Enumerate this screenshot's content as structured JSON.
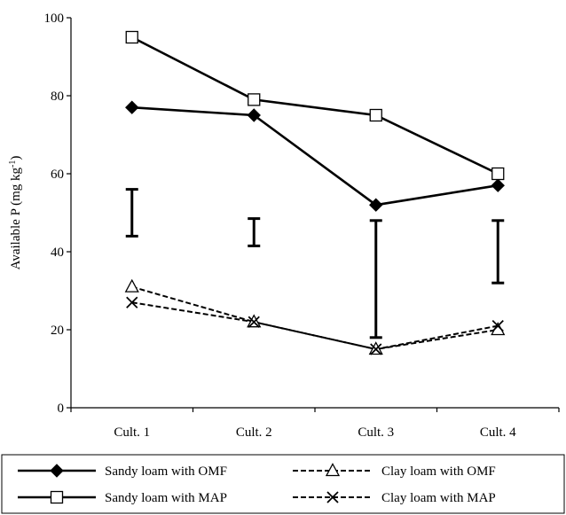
{
  "chart_data": {
    "type": "line",
    "categories": [
      "Cult. 1",
      "Cult. 2",
      "Cult. 3",
      "Cult. 4"
    ],
    "ylabel": "Available P (mg kg",
    "ylabel_sup": "-1",
    "ylabel_close": ")",
    "ylim": [
      0,
      100
    ],
    "yticks": [
      0,
      20,
      40,
      60,
      80,
      100
    ],
    "grid": false,
    "legend_position": "bottom",
    "series": [
      {
        "name": "Sandy loam with OMF",
        "values": [
          77,
          75,
          52,
          57
        ],
        "marker": "filled-diamond",
        "line": "solid",
        "color": "#000000"
      },
      {
        "name": "Clay loam with OMF",
        "values": [
          31,
          22,
          15,
          20
        ],
        "marker": "open-triangle",
        "line": "dashed",
        "color": "#000000"
      },
      {
        "name": "Sandy loam with MAP",
        "values": [
          95,
          79,
          75,
          60
        ],
        "marker": "open-square",
        "line": "solid",
        "color": "#000000"
      },
      {
        "name": "Clay loam with MAP",
        "values": [
          27,
          22,
          15,
          21
        ],
        "marker": "x",
        "line": "dashed",
        "color": "#000000"
      }
    ],
    "error_bars": [
      {
        "category": "Cult. 1",
        "low": 44,
        "high": 56
      },
      {
        "category": "Cult. 2",
        "low": 41.5,
        "high": 48.5
      },
      {
        "category": "Cult. 3",
        "low": 18,
        "high": 48
      },
      {
        "category": "Cult. 4",
        "low": 32,
        "high": 48
      }
    ]
  }
}
